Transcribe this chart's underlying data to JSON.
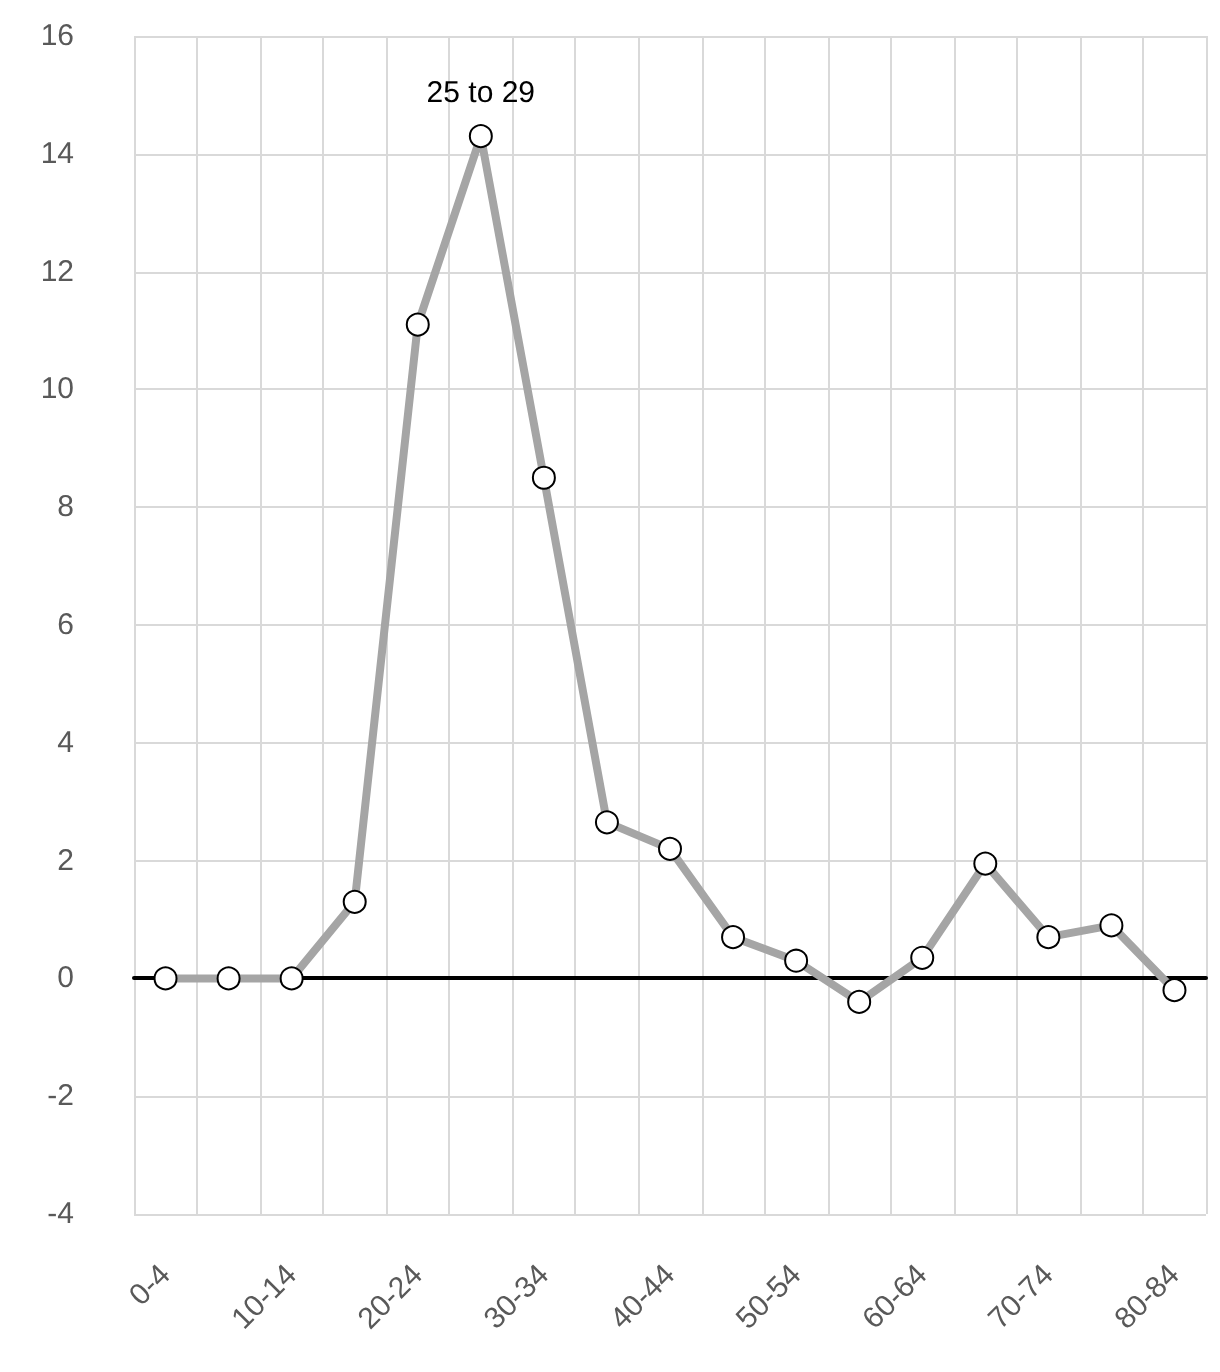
{
  "chart_data": {
    "type": "line",
    "categories": [
      "0-4",
      null,
      "10-14",
      null,
      "20-24",
      null,
      "30-34",
      null,
      "40-44",
      null,
      "50-54",
      null,
      "60-64",
      null,
      "70-74",
      null,
      "80-84"
    ],
    "series": [
      {
        "color": "#a5a5a5",
        "values": [
          0,
          0,
          0,
          1.3,
          11.1,
          14.3,
          8.5,
          2.65,
          2.2,
          0.7,
          0.3,
          -0.4,
          0.35,
          1.95,
          0.7,
          0.9,
          -0.2
        ]
      }
    ],
    "ylim": [
      -4,
      16
    ],
    "yticks": [
      -4,
      -2,
      0,
      2,
      4,
      6,
      8,
      10,
      12,
      14,
      16
    ],
    "annotations": [
      {
        "text": "25 to 29",
        "y": 14.3
      }
    ],
    "grid": true,
    "marker": "circle",
    "line_style": "solid"
  }
}
